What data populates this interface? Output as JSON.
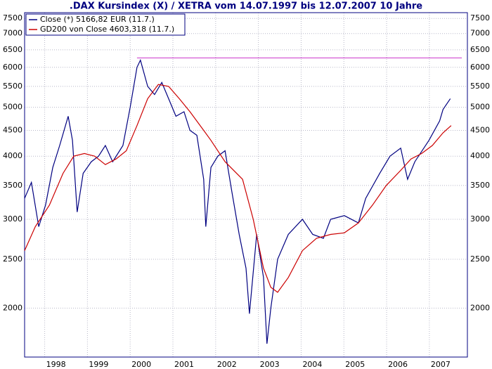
{
  "chart_data": {
    "type": "line",
    "title": ".DAX Kursindex (X) / XETRA vom 14.07.1997 bis 12.07.2007 10 Jahre",
    "log_scale": true,
    "grid": true,
    "legend": "top-left",
    "xlim": [
      1997.53,
      2007.89
    ],
    "xticks": [
      1998,
      1999,
      2000,
      2001,
      2002,
      2003,
      2004,
      2005,
      2006,
      2007
    ],
    "ylim": [
      1600,
      7700
    ],
    "yticks": [
      2000,
      2500,
      3000,
      3500,
      4000,
      4500,
      5000,
      5500,
      6000,
      6500,
      7000,
      7500
    ],
    "series": [
      {
        "name": "Close (*) 5166,82 EUR (11.7.)",
        "color": "#000080",
        "x": [
          1997.53,
          1997.69,
          1997.86,
          1998.02,
          1998.19,
          1998.35,
          1998.55,
          1998.65,
          1998.76,
          1998.9,
          1999.09,
          1999.26,
          1999.42,
          1999.59,
          1999.83,
          2000.0,
          2000.16,
          2000.24,
          2000.41,
          2000.57,
          2000.74,
          2000.9,
          2001.07,
          2001.26,
          2001.4,
          2001.56,
          2001.72,
          2001.77,
          2001.89,
          2002.05,
          2002.22,
          2002.38,
          2002.55,
          2002.71,
          2002.79,
          2002.96,
          2003.12,
          2003.2,
          2003.29,
          2003.45,
          2003.7,
          2004.03,
          2004.27,
          2004.52,
          2004.69,
          2005.01,
          2005.34,
          2005.51,
          2005.84,
          2006.08,
          2006.33,
          2006.49,
          2006.66,
          2006.99,
          2007.24,
          2007.32,
          2007.49
        ],
        "values": [
          3300,
          3550,
          2900,
          3200,
          3800,
          4200,
          4800,
          4300,
          3100,
          3700,
          3900,
          4000,
          4200,
          3900,
          4200,
          5000,
          6000,
          6200,
          5500,
          5300,
          5600,
          5200,
          4800,
          4900,
          4500,
          4400,
          3600,
          2900,
          3800,
          4000,
          4100,
          3400,
          2800,
          2400,
          1950,
          2800,
          2300,
          1700,
          2000,
          2500,
          2800,
          3000,
          2800,
          2750,
          3000,
          3050,
          2950,
          3300,
          3700,
          4000,
          4150,
          3600,
          3900,
          4300,
          4700,
          4950,
          5200
        ]
      },
      {
        "name": "GD200 von Close 4603,318 (11.7.)",
        "color": "#cc0000",
        "x": [
          1997.53,
          1997.78,
          1998.11,
          1998.43,
          1998.68,
          1998.93,
          1999.17,
          1999.42,
          1999.67,
          1999.91,
          2000.16,
          2000.41,
          2000.66,
          2000.9,
          2001.15,
          2001.4,
          2001.72,
          2001.89,
          2002.22,
          2002.63,
          2002.88,
          2003.12,
          2003.29,
          2003.45,
          2003.7,
          2004.03,
          2004.36,
          2004.69,
          2005.01,
          2005.34,
          2005.67,
          2005.99,
          2006.33,
          2006.57,
          2006.82,
          2007.07,
          2007.32,
          2007.51
        ],
        "values": [
          2600,
          2900,
          3200,
          3700,
          4000,
          4050,
          4000,
          3850,
          3950,
          4100,
          4600,
          5200,
          5550,
          5500,
          5200,
          4900,
          4500,
          4300,
          3900,
          3600,
          3000,
          2400,
          2200,
          2150,
          2300,
          2600,
          2750,
          2800,
          2820,
          2950,
          3200,
          3500,
          3750,
          3950,
          4050,
          4200,
          4450,
          4600
        ]
      }
    ],
    "reference_line": {
      "value": 6265,
      "x": [
        2000.16,
        2007.76
      ],
      "color": "#cc33cc"
    }
  }
}
